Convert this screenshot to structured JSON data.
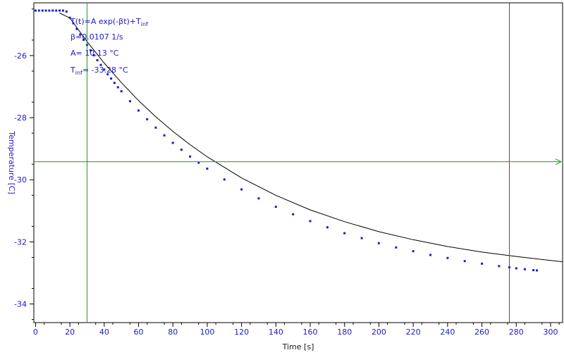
{
  "chart_data": {
    "type": "scatter",
    "title": "",
    "xlabel": "Time [s]",
    "ylabel": "Temperature [C]",
    "xlim": [
      -1,
      307
    ],
    "ylim": [
      -34.6,
      -24.3
    ],
    "xticks": [
      0,
      20,
      40,
      60,
      80,
      100,
      120,
      140,
      160,
      180,
      200,
      220,
      240,
      260,
      280,
      300
    ],
    "yticks": [
      -26,
      -28,
      -30,
      -32,
      -34
    ],
    "grid": false,
    "series": [
      {
        "type": "scatter",
        "color": "#1a1acc",
        "x": [
          0,
          2,
          4,
          6,
          8,
          10,
          12,
          14,
          16,
          18,
          20,
          22,
          24,
          26,
          28,
          30,
          32,
          34,
          36,
          38,
          40,
          42,
          44,
          46,
          48,
          50,
          55,
          60,
          65,
          70,
          75,
          80,
          85,
          90,
          95,
          100,
          110,
          120,
          130,
          140,
          150,
          160,
          170,
          180,
          190,
          200,
          210,
          220,
          230,
          240,
          250,
          260,
          270,
          276,
          280,
          285,
          290,
          292
        ],
        "y": [
          -24.55,
          -24.55,
          -24.55,
          -24.55,
          -24.55,
          -24.55,
          -24.55,
          -24.55,
          -24.55,
          -24.58,
          -24.78,
          -24.96,
          -25.14,
          -25.32,
          -25.49,
          -25.66,
          -25.83,
          -25.99,
          -26.15,
          -26.3,
          -26.45,
          -26.6,
          -26.74,
          -26.88,
          -27.02,
          -27.15,
          -27.47,
          -27.77,
          -28.05,
          -28.32,
          -28.57,
          -28.81,
          -29.03,
          -29.25,
          -29.45,
          -29.64,
          -29.99,
          -30.31,
          -30.6,
          -30.87,
          -31.11,
          -31.33,
          -31.53,
          -31.72,
          -31.88,
          -32.04,
          -32.18,
          -32.3,
          -32.42,
          -32.52,
          -32.62,
          -32.7,
          -32.78,
          -32.82,
          -32.85,
          -32.88,
          -32.91,
          -32.92
        ]
      }
    ],
    "fit": {
      "type": "line",
      "color": "#000000",
      "model": "T(t)=A exp(-βt)+T_inf",
      "x": [
        14,
        20,
        30,
        40,
        50,
        60,
        70,
        80,
        90,
        100,
        120,
        140,
        160,
        180,
        200,
        220,
        240,
        260,
        280,
        300,
        307
      ],
      "y": [
        -24.63,
        -24.79,
        -25.55,
        -26.24,
        -26.87,
        -27.45,
        -27.97,
        -28.44,
        -28.87,
        -29.26,
        -29.94,
        -30.5,
        -30.97,
        -31.35,
        -31.67,
        -31.93,
        -32.15,
        -32.33,
        -32.47,
        -32.6,
        -32.64
      ]
    },
    "annotations": {
      "formula_main": "T(t)=A exp(-βt)+T",
      "formula_sub": "inf",
      "beta": "β=0.0107 1/s",
      "amp": "A= 10.13 °C",
      "tinf_main": "T",
      "tinf_sub": "inf",
      "tinf_value": "= -33.28 °C"
    },
    "cursors": {
      "vertical_green_x": 30,
      "vertical_red_x": 276,
      "horizontal_green_y": -29.42
    },
    "colors": {
      "data": "#1a1acc",
      "fit": "#000000",
      "cursor_green": "#1aa01a",
      "cursor_red": "#cc1a1a",
      "axis": "#000000"
    }
  }
}
